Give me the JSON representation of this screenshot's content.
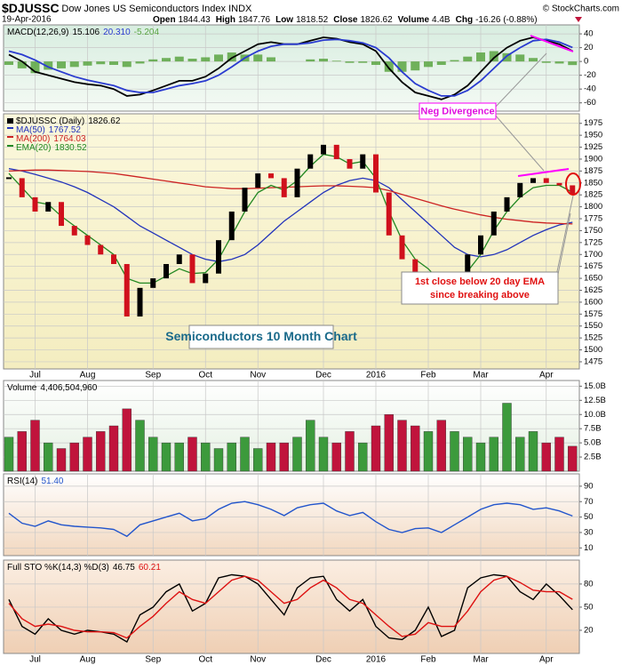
{
  "header": {
    "symbol": "$DJUSSC",
    "name": "Dow Jones US Semiconductors Index INDX",
    "date": "19-Apr-2016",
    "quote": [
      {
        "label": "Open",
        "value": "1844.43"
      },
      {
        "label": "High",
        "value": "1847.76"
      },
      {
        "label": "Low",
        "value": "1818.52"
      },
      {
        "label": "Close",
        "value": "1826.62"
      },
      {
        "label": "Volume",
        "value": "4.4B"
      },
      {
        "label": "Chg",
        "value": "-16.26 (-0.88%)"
      }
    ],
    "credit": "© StockCharts.com"
  },
  "annotations": {
    "divergence": "Neg Divergence",
    "ema_break": [
      "1st close below 20 day EMA",
      "since breaking above"
    ],
    "chart_title": "Semiconductors 10 Month Chart"
  },
  "chart_data": [
    {
      "type": "macd",
      "label": "MACD(12,26,9)",
      "ylim": [
        -72,
        53
      ],
      "yticks": [
        40,
        20,
        0,
        -20,
        -40,
        -60
      ],
      "series": [
        {
          "color": "#000000",
          "readout": "15.106",
          "values": [
            10,
            0,
            -15,
            -20,
            -25,
            -30,
            -33,
            -35,
            -40,
            -50,
            -48,
            -42,
            -35,
            -28,
            -28,
            -22,
            -10,
            5,
            15,
            25,
            28,
            25,
            25,
            30,
            35,
            33,
            28,
            25,
            15,
            -10,
            -30,
            -45,
            -50,
            -55,
            -48,
            -35,
            -15,
            5,
            20,
            30,
            35,
            30,
            25,
            15.106
          ]
        },
        {
          "color": "#2a3bd0",
          "readout": "20.310",
          "values": [
            15,
            10,
            2,
            -8,
            -15,
            -22,
            -27,
            -31,
            -35,
            -42,
            -45,
            -45,
            -40,
            -35,
            -32,
            -28,
            -20,
            -8,
            5,
            15,
            22,
            25,
            25,
            27,
            31,
            32,
            30,
            27,
            20,
            5,
            -15,
            -32,
            -42,
            -50,
            -50,
            -42,
            -28,
            -10,
            8,
            20,
            30,
            32,
            28,
            20.31
          ]
        },
        {
          "type": "histogram",
          "color": "#5aa542",
          "readout": "-5.204",
          "values": [
            -5,
            -10,
            -17,
            -12,
            -10,
            -8,
            -6,
            -4,
            -5,
            -8,
            -3,
            3,
            5,
            7,
            4,
            6,
            10,
            13,
            10,
            10,
            6,
            0,
            0,
            3,
            4,
            1,
            -2,
            -2,
            -5,
            -15,
            -15,
            -13,
            -8,
            -5,
            2,
            7,
            13,
            15,
            12,
            10,
            5,
            -2,
            -3,
            -5.204
          ]
        }
      ]
    },
    {
      "type": "price",
      "ylim": [
        1460,
        1995
      ],
      "yticks": [
        1975,
        1950,
        1925,
        1900,
        1875,
        1850,
        1825,
        1800,
        1775,
        1750,
        1725,
        1700,
        1675,
        1650,
        1625,
        1600,
        1575,
        1550,
        1525,
        1500,
        1475
      ],
      "categories": [
        null,
        null,
        "Jul",
        null,
        null,
        null,
        "Aug",
        null,
        null,
        null,
        null,
        "Sep",
        null,
        null,
        null,
        "Oct",
        null,
        null,
        null,
        "Nov",
        null,
        null,
        null,
        null,
        "Dec",
        null,
        null,
        null,
        "2016",
        null,
        null,
        null,
        "Feb",
        null,
        null,
        null,
        "Mar",
        null,
        null,
        null,
        null,
        "Apr",
        null,
        null
      ],
      "up_color": "#000000",
      "down_color": "#d0101c",
      "series": [
        {
          "name": "$DJUSSC (Daily)",
          "color": "#000000",
          "readout": "1826.62",
          "values": [
            1860,
            1820,
            1790,
            1810,
            1760,
            1740,
            1720,
            1700,
            1680,
            1570,
            1630,
            1650,
            1680,
            1700,
            1640,
            1660,
            1730,
            1790,
            1840,
            1870,
            1860,
            1820,
            1880,
            1910,
            1930,
            1900,
            1880,
            1910,
            1830,
            1740,
            1690,
            1660,
            1660,
            1610,
            1640,
            1700,
            1740,
            1790,
            1820,
            1850,
            1860,
            1850,
            1845,
            1826.62
          ]
        },
        {
          "name": "MA(50)",
          "color": "#2233bb",
          "readout": "1767.52",
          "values": [
            1880,
            1875,
            1868,
            1860,
            1852,
            1842,
            1830,
            1815,
            1800,
            1780,
            1760,
            1745,
            1730,
            1715,
            1700,
            1690,
            1685,
            1690,
            1700,
            1720,
            1745,
            1770,
            1790,
            1810,
            1830,
            1845,
            1855,
            1860,
            1855,
            1840,
            1815,
            1790,
            1765,
            1740,
            1715,
            1700,
            1695,
            1700,
            1710,
            1725,
            1740,
            1752,
            1762,
            1767.52
          ]
        },
        {
          "name": "MA(200)",
          "color": "#cc2222",
          "readout": "1764.03",
          "values": [
            1875,
            1876,
            1877,
            1877,
            1876,
            1875,
            1874,
            1872,
            1870,
            1866,
            1862,
            1858,
            1854,
            1850,
            1846,
            1842,
            1840,
            1838,
            1838,
            1839,
            1840,
            1841,
            1842,
            1843,
            1844,
            1844,
            1843,
            1842,
            1840,
            1834,
            1826,
            1818,
            1810,
            1802,
            1795,
            1789,
            1783,
            1778,
            1774,
            1771,
            1768,
            1766,
            1765,
            1764.03
          ]
        },
        {
          "name": "EMA(20)",
          "color": "#228822",
          "readout": "1830.52",
          "values": [
            1870,
            1840,
            1810,
            1805,
            1780,
            1760,
            1740,
            1720,
            1700,
            1650,
            1640,
            1640,
            1655,
            1670,
            1660,
            1662,
            1690,
            1740,
            1790,
            1830,
            1845,
            1835,
            1855,
            1885,
            1910,
            1905,
            1890,
            1895,
            1860,
            1790,
            1730,
            1690,
            1670,
            1640,
            1640,
            1665,
            1700,
            1750,
            1790,
            1820,
            1840,
            1845,
            1845,
            1830.52
          ]
        }
      ]
    },
    {
      "type": "volume",
      "ylim": [
        0,
        16
      ],
      "up_color": "#3c9a3c",
      "down_color": "#c0143c",
      "yticks": [
        {
          "value": 15,
          "label": "15.0B"
        },
        {
          "value": 12.5,
          "label": "12.5B"
        },
        {
          "value": 10,
          "label": "10.0B"
        },
        {
          "value": 7.5,
          "label": "7.5B"
        },
        {
          "value": 5,
          "label": "5.0B"
        },
        {
          "value": 2.5,
          "label": "2.5B"
        }
      ],
      "series": [
        {
          "name": "Volume",
          "readout": "4,406,504,960",
          "values": [
            6,
            7,
            9,
            5,
            4,
            5,
            6,
            7,
            8,
            11,
            9,
            6,
            5,
            5,
            6,
            5,
            4,
            5,
            6,
            4,
            5,
            5,
            6,
            9,
            6,
            5,
            7,
            5,
            8,
            10,
            9,
            8,
            7,
            9,
            7,
            6,
            5,
            6,
            12,
            6,
            7,
            5,
            6,
            4.40650496
          ]
        }
      ]
    },
    {
      "type": "line",
      "label": "RSI(14)",
      "ylim": [
        0,
        106
      ],
      "yticks": [
        90,
        70,
        50,
        30,
        10
      ],
      "series": [
        {
          "color": "#2255cc",
          "readout": "51.40",
          "values": [
            55,
            42,
            38,
            45,
            40,
            38,
            37,
            36,
            34,
            25,
            40,
            45,
            50,
            55,
            45,
            48,
            60,
            68,
            70,
            66,
            60,
            52,
            62,
            66,
            68,
            58,
            52,
            56,
            44,
            34,
            30,
            35,
            36,
            30,
            40,
            50,
            60,
            66,
            68,
            66,
            60,
            62,
            58,
            51.4
          ]
        }
      ]
    },
    {
      "type": "line",
      "label": "Full STO %K(14,3) %D(3)",
      "ylim": [
        -10,
        111
      ],
      "yticks": [
        80,
        50,
        20
      ],
      "categories": [
        null,
        null,
        "Jul",
        null,
        null,
        null,
        "Aug",
        null,
        null,
        null,
        null,
        "Sep",
        null,
        null,
        null,
        "Oct",
        null,
        null,
        null,
        "Nov",
        null,
        null,
        null,
        null,
        "Dec",
        null,
        null,
        null,
        "2016",
        null,
        null,
        null,
        "Feb",
        null,
        null,
        null,
        "Mar",
        null,
        null,
        null,
        null,
        "Apr",
        null,
        null
      ],
      "series": [
        {
          "color": "#000000",
          "readout": "46.75",
          "values": [
            60,
            25,
            15,
            35,
            20,
            15,
            20,
            18,
            15,
            5,
            40,
            50,
            70,
            80,
            45,
            55,
            88,
            92,
            90,
            80,
            60,
            40,
            75,
            88,
            90,
            60,
            45,
            60,
            25,
            10,
            8,
            20,
            50,
            12,
            20,
            75,
            88,
            92,
            90,
            70,
            60,
            80,
            65,
            46.75
          ]
        },
        {
          "color": "#dd1111",
          "readout": "60.21",
          "values": [
            55,
            35,
            25,
            28,
            25,
            20,
            18,
            18,
            17,
            10,
            25,
            38,
            55,
            70,
            60,
            55,
            70,
            85,
            90,
            85,
            70,
            55,
            60,
            75,
            85,
            75,
            60,
            55,
            40,
            25,
            12,
            15,
            30,
            25,
            25,
            45,
            70,
            85,
            90,
            82,
            72,
            70,
            70,
            60.21
          ]
        }
      ]
    }
  ]
}
